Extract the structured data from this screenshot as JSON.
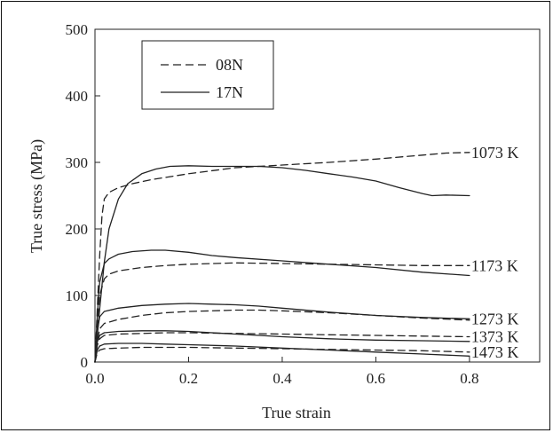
{
  "chart_data": {
    "type": "line",
    "title": "",
    "xlabel": "True strain",
    "ylabel": "True stress (MPa)",
    "xlim": [
      0,
      0.95
    ],
    "ylim": [
      0,
      500
    ],
    "xticks": [
      0.0,
      0.2,
      0.4,
      0.6,
      0.8
    ],
    "xtick_labels": [
      "0.0",
      "0.2",
      "0.4",
      "0.6",
      "0.8"
    ],
    "yticks": [
      0,
      100,
      200,
      300,
      400,
      500
    ],
    "ytick_labels": [
      "0",
      "100",
      "200",
      "300",
      "400",
      "500"
    ],
    "grid": false,
    "legend_position": "top-left",
    "legend": [
      {
        "name": "08N",
        "style": "dashed"
      },
      {
        "name": "17N",
        "style": "solid"
      }
    ],
    "annotations": [
      {
        "text": "1073 K",
        "y": 315
      },
      {
        "text": "1173 K",
        "y": 145
      },
      {
        "text": "1273 K",
        "y": 65
      },
      {
        "text": "1373 K",
        "y": 38
      },
      {
        "text": "1473 K",
        "y": 15
      }
    ],
    "series": [
      {
        "name": "08N",
        "group": "1073 K",
        "style": "dashed",
        "x": [
          0,
          0.005,
          0.01,
          0.015,
          0.02,
          0.03,
          0.05,
          0.08,
          0.12,
          0.2,
          0.3,
          0.4,
          0.5,
          0.6,
          0.7,
          0.75,
          0.8
        ],
        "y": [
          0,
          80,
          160,
          220,
          245,
          255,
          262,
          268,
          274,
          283,
          292,
          296,
          300,
          305,
          311,
          314,
          315
        ]
      },
      {
        "name": "17N",
        "group": "1073 K",
        "style": "solid",
        "x": [
          0,
          0.01,
          0.02,
          0.03,
          0.05,
          0.07,
          0.1,
          0.13,
          0.16,
          0.2,
          0.25,
          0.3,
          0.35,
          0.4,
          0.45,
          0.5,
          0.55,
          0.6,
          0.65,
          0.7,
          0.72,
          0.75,
          0.8
        ],
        "y": [
          0,
          80,
          150,
          200,
          245,
          268,
          283,
          290,
          294,
          295,
          294,
          294,
          294,
          292,
          288,
          283,
          278,
          272,
          262,
          253,
          250,
          251,
          250
        ]
      },
      {
        "name": "08N",
        "group": "1173 K",
        "style": "dashed",
        "x": [
          0,
          0.005,
          0.01,
          0.02,
          0.03,
          0.05,
          0.1,
          0.15,
          0.2,
          0.3,
          0.4,
          0.5,
          0.6,
          0.7,
          0.8
        ],
        "y": [
          0,
          55,
          100,
          125,
          132,
          137,
          142,
          145,
          147,
          149,
          148,
          147,
          146,
          145,
          145
        ]
      },
      {
        "name": "17N",
        "group": "1173 K",
        "style": "solid",
        "x": [
          0,
          0.005,
          0.01,
          0.02,
          0.03,
          0.05,
          0.08,
          0.12,
          0.15,
          0.2,
          0.25,
          0.3,
          0.4,
          0.5,
          0.6,
          0.7,
          0.8
        ],
        "y": [
          0,
          70,
          120,
          148,
          155,
          162,
          166,
          168,
          168,
          165,
          160,
          157,
          152,
          147,
          142,
          135,
          130
        ]
      },
      {
        "name": "08N",
        "group": "1273 K",
        "style": "dashed",
        "x": [
          0,
          0.005,
          0.01,
          0.02,
          0.05,
          0.1,
          0.15,
          0.2,
          0.25,
          0.3,
          0.35,
          0.4,
          0.5,
          0.6,
          0.7,
          0.8
        ],
        "y": [
          0,
          30,
          50,
          58,
          64,
          70,
          74,
          76,
          77,
          78,
          78,
          77,
          74,
          70,
          66,
          63
        ]
      },
      {
        "name": "17N",
        "group": "1273 K",
        "style": "solid",
        "x": [
          0,
          0.005,
          0.01,
          0.02,
          0.05,
          0.1,
          0.15,
          0.2,
          0.25,
          0.3,
          0.35,
          0.4,
          0.5,
          0.6,
          0.7,
          0.8
        ],
        "y": [
          0,
          45,
          68,
          76,
          81,
          85,
          87,
          88,
          87,
          86,
          84,
          81,
          75,
          70,
          67,
          65
        ]
      },
      {
        "name": "08N",
        "group": "1373 K",
        "style": "dashed",
        "x": [
          0,
          0.005,
          0.01,
          0.02,
          0.05,
          0.1,
          0.15,
          0.2,
          0.3,
          0.4,
          0.5,
          0.6,
          0.7,
          0.8
        ],
        "y": [
          0,
          25,
          35,
          40,
          42,
          43,
          44,
          44,
          43,
          42,
          41,
          40,
          39,
          38
        ]
      },
      {
        "name": "17N",
        "group": "1373 K",
        "style": "solid",
        "x": [
          0,
          0.005,
          0.01,
          0.02,
          0.05,
          0.1,
          0.15,
          0.2,
          0.3,
          0.4,
          0.5,
          0.6,
          0.7,
          0.8
        ],
        "y": [
          0,
          30,
          40,
          44,
          46,
          47,
          47,
          46,
          42,
          38,
          35,
          33,
          32,
          31
        ]
      },
      {
        "name": "08N",
        "group": "1473 K",
        "style": "dashed",
        "x": [
          0,
          0.005,
          0.01,
          0.02,
          0.05,
          0.1,
          0.15,
          0.2,
          0.3,
          0.4,
          0.5,
          0.6,
          0.7,
          0.8
        ],
        "y": [
          0,
          14,
          18,
          20,
          21,
          22,
          22,
          22,
          21,
          20,
          19,
          18,
          17,
          15
        ]
      },
      {
        "name": "17N",
        "group": "1473 K",
        "style": "solid",
        "x": [
          0,
          0.005,
          0.01,
          0.02,
          0.05,
          0.1,
          0.15,
          0.2,
          0.3,
          0.4,
          0.5,
          0.6,
          0.7,
          0.8
        ],
        "y": [
          0,
          18,
          24,
          27,
          28,
          28,
          27,
          26,
          24,
          21,
          18,
          15,
          12,
          9
        ]
      }
    ]
  }
}
